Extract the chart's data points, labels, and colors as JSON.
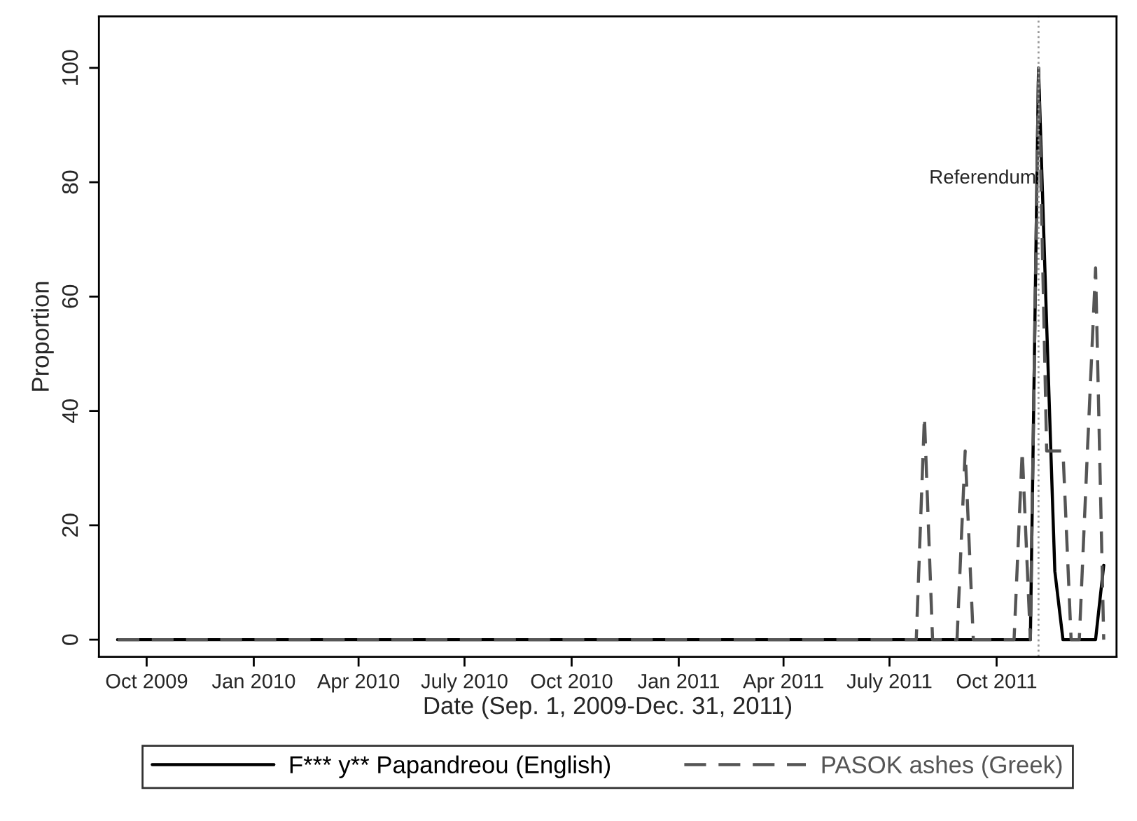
{
  "chart_data": {
    "type": "line",
    "xlabel": "Date (Sep. 1, 2009-Dec. 31, 2011)",
    "ylabel": "Proportion",
    "xlim": [
      "2009-08-21",
      "2012-01-12"
    ],
    "xticks": [
      {
        "value": "2009-10-01",
        "label": "Oct 2009"
      },
      {
        "value": "2010-01-01",
        "label": "Jan 2010"
      },
      {
        "value": "2010-04-01",
        "label": "Apr 2010"
      },
      {
        "value": "2010-07-01",
        "label": "July 2010"
      },
      {
        "value": "2010-10-01",
        "label": "Oct 2010"
      },
      {
        "value": "2011-01-01",
        "label": "Jan 2011"
      },
      {
        "value": "2011-04-01",
        "label": "Apr 2011"
      },
      {
        "value": "2011-07-01",
        "label": "July 2011"
      },
      {
        "value": "2011-10-01",
        "label": "Oct 2011"
      }
    ],
    "ylim": [
      -3,
      109
    ],
    "yticks": [
      0,
      20,
      40,
      60,
      80,
      100
    ],
    "grid": false,
    "legend": "bottom",
    "marker": "none",
    "ref_lines": [
      {
        "axis": "x",
        "value": "2011-11-06",
        "label": "Referendum",
        "color": "#999999",
        "line_style": "dotted"
      }
    ],
    "series": [
      {
        "name": "F*** y** Papandreou (English)",
        "color": "#000000",
        "line_style": "solid",
        "x": [
          "2009-09-06",
          "2011-10-30",
          "2011-11-06",
          "2011-11-13",
          "2011-11-20",
          "2011-11-27",
          "2011-12-25",
          "2012-01-01"
        ],
        "values": [
          0,
          0,
          100,
          55,
          12,
          0,
          0,
          13
        ]
      },
      {
        "name": "PASOK ashes (Greek)",
        "color": "#555555",
        "line_style": "dashed",
        "x": [
          "2009-09-06",
          "2011-07-24",
          "2011-07-31",
          "2011-08-07",
          "2011-08-28",
          "2011-09-04",
          "2011-09-11",
          "2011-10-16",
          "2011-10-23",
          "2011-10-30",
          "2011-11-06",
          "2011-11-13",
          "2011-11-20",
          "2011-11-27",
          "2011-12-04",
          "2011-12-11",
          "2011-12-18",
          "2011-12-25",
          "2012-01-01"
        ],
        "values": [
          0,
          0,
          39,
          0,
          0,
          33,
          0,
          0,
          33,
          0,
          100,
          33,
          33,
          33,
          0,
          0,
          33,
          65,
          0
        ]
      }
    ]
  }
}
